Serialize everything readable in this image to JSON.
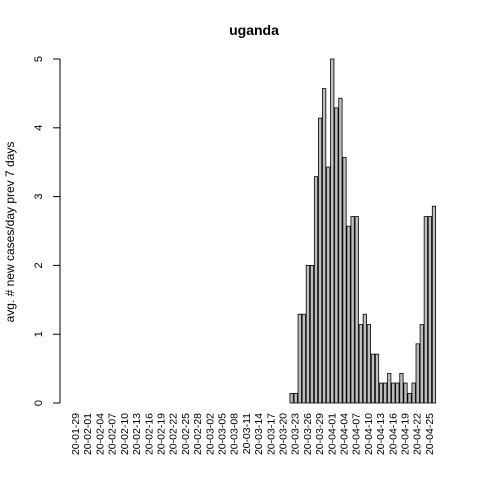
{
  "chart_data": {
    "type": "bar",
    "title": "uganda",
    "xlabel": "",
    "ylabel": "avg. # new cases/day prev  7  days",
    "ylim": [
      0,
      5
    ],
    "yticks": [
      0,
      1,
      2,
      3,
      4,
      5
    ],
    "grid": false,
    "bar_color": "#bebebe",
    "tick_labels": [
      "20-01-29",
      "20-02-01",
      "20-02-04",
      "20-02-07",
      "20-02-10",
      "20-02-13",
      "20-02-16",
      "20-02-19",
      "20-02-22",
      "20-02-25",
      "20-02-28",
      "20-03-02",
      "20-03-05",
      "20-03-08",
      "20-03-11",
      "20-03-14",
      "20-03-17",
      "20-03-20",
      "20-03-23",
      "20-03-26",
      "20-03-29",
      "20-04-01",
      "20-04-04",
      "20-04-07",
      "20-04-10",
      "20-04-13",
      "20-04-16",
      "20-04-19",
      "20-04-22",
      "20-04-25"
    ],
    "categories": [
      "20-01-29",
      "20-01-30",
      "20-01-31",
      "20-02-01",
      "20-02-02",
      "20-02-03",
      "20-02-04",
      "20-02-05",
      "20-02-06",
      "20-02-07",
      "20-02-08",
      "20-02-09",
      "20-02-10",
      "20-02-11",
      "20-02-12",
      "20-02-13",
      "20-02-14",
      "20-02-15",
      "20-02-16",
      "20-02-17",
      "20-02-18",
      "20-02-19",
      "20-02-20",
      "20-02-21",
      "20-02-22",
      "20-02-23",
      "20-02-24",
      "20-02-25",
      "20-02-26",
      "20-02-27",
      "20-02-28",
      "20-02-29",
      "20-03-01",
      "20-03-02",
      "20-03-03",
      "20-03-04",
      "20-03-05",
      "20-03-06",
      "20-03-07",
      "20-03-08",
      "20-03-09",
      "20-03-10",
      "20-03-11",
      "20-03-12",
      "20-03-13",
      "20-03-14",
      "20-03-15",
      "20-03-16",
      "20-03-17",
      "20-03-18",
      "20-03-19",
      "20-03-20",
      "20-03-21",
      "20-03-22",
      "20-03-23",
      "20-03-24",
      "20-03-25",
      "20-03-26",
      "20-03-27",
      "20-03-28",
      "20-03-29",
      "20-03-30",
      "20-03-31",
      "20-04-01",
      "20-04-02",
      "20-04-03",
      "20-04-04",
      "20-04-05",
      "20-04-06",
      "20-04-07",
      "20-04-08",
      "20-04-09",
      "20-04-10",
      "20-04-11",
      "20-04-12",
      "20-04-13",
      "20-04-14",
      "20-04-15",
      "20-04-16",
      "20-04-17",
      "20-04-18",
      "20-04-19",
      "20-04-20",
      "20-04-21",
      "20-04-22",
      "20-04-23",
      "20-04-24",
      "20-04-25",
      "20-04-26"
    ],
    "values": [
      0,
      0,
      0,
      0,
      0,
      0,
      0,
      0,
      0,
      0,
      0,
      0,
      0,
      0,
      0,
      0,
      0,
      0,
      0,
      0,
      0,
      0,
      0,
      0,
      0,
      0,
      0,
      0,
      0,
      0,
      0,
      0,
      0,
      0,
      0,
      0,
      0,
      0,
      0,
      0,
      0,
      0,
      0,
      0,
      0,
      0,
      0,
      0,
      0,
      0,
      0,
      0,
      0,
      0.14,
      0.14,
      1.29,
      1.29,
      2.0,
      2.0,
      3.29,
      4.14,
      4.57,
      3.43,
      5.0,
      4.29,
      4.43,
      3.57,
      2.57,
      2.71,
      2.71,
      1.14,
      1.29,
      1.14,
      0.71,
      0.71,
      0.29,
      0.29,
      0.43,
      0.29,
      0.29,
      0.43,
      0.29,
      0.14,
      0.29,
      0.86,
      1.14,
      2.71,
      2.71,
      2.86
    ]
  }
}
